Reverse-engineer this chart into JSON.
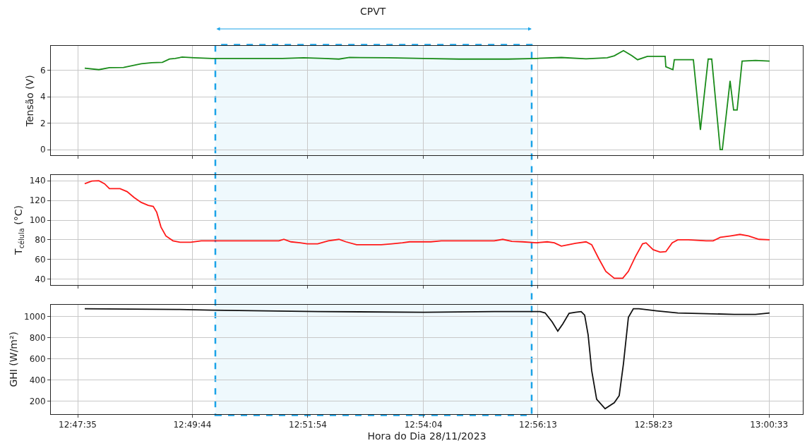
{
  "chart_data": [
    {
      "type": "line",
      "ylabel": "Tensão (V)",
      "xlim": [
        12.78467,
        13.01972
      ],
      "ylim": [
        -0.45,
        7.85
      ],
      "yticks": [
        0,
        2,
        4,
        6
      ],
      "xticks": [
        {
          "value": 12.793056,
          "label": null
        },
        {
          "value": 12.828889,
          "label": null
        },
        {
          "value": 12.865,
          "label": null
        },
        {
          "value": 12.901111,
          "label": null
        },
        {
          "value": 12.936944,
          "label": null
        },
        {
          "value": 12.973056,
          "label": null
        },
        {
          "value": 13.009167,
          "label": null
        }
      ],
      "tick_labels": "y",
      "grid": true,
      "bands": [
        {
          "axis": "x",
          "from": 12.83609,
          "to": 12.93497,
          "label": "CPVT",
          "color": "#1aa3e8"
        }
      ],
      "series": [
        {
          "color": "#1a8c1a",
          "x": [
            12.79526,
            12.79968,
            12.80299,
            12.8074,
            12.81292,
            12.81623,
            12.81954,
            12.82175,
            12.82351,
            12.82572,
            12.82947,
            12.83499,
            12.85706,
            12.86368,
            12.8703,
            12.87472,
            12.87803,
            12.89016,
            12.9012,
            12.91223,
            12.92768,
            12.93651,
            12.94424,
            12.95196,
            12.95858,
            12.96079,
            12.96366,
            12.96631,
            12.96807,
            12.97116,
            12.97668,
            12.9769,
            12.97911,
            12.97955,
            12.98551,
            12.98771,
            12.99014,
            12.99125,
            12.99389,
            12.99456,
            12.99698,
            12.99809,
            12.99919,
            13.00074,
            13.00493,
            13.00934
          ],
          "values": [
            6.16,
            6.05,
            6.2,
            6.22,
            6.5,
            6.58,
            6.6,
            6.85,
            6.9,
            7.0,
            6.95,
            6.9,
            6.9,
            6.95,
            6.9,
            6.85,
            6.97,
            6.95,
            6.9,
            6.85,
            6.85,
            6.9,
            6.97,
            6.87,
            6.95,
            7.1,
            7.49,
            7.1,
            6.8,
            7.06,
            7.06,
            6.27,
            6.05,
            6.8,
            6.8,
            1.49,
            6.85,
            6.85,
            0,
            0,
            5.2,
            3.0,
            3.0,
            6.7,
            6.75,
            6.7
          ]
        }
      ]
    },
    {
      "type": "line",
      "ylabel": "T$_{célula}$ (°C)",
      "xlim": [
        12.78467,
        13.01972
      ],
      "ylim": [
        34.3,
        145.7
      ],
      "yticks": [
        40,
        60,
        80,
        100,
        120,
        140
      ],
      "xticks": [
        {
          "value": 12.793056,
          "label": null
        },
        {
          "value": 12.828889,
          "label": null
        },
        {
          "value": 12.865,
          "label": null
        },
        {
          "value": 12.901111,
          "label": null
        },
        {
          "value": 12.936944,
          "label": null
        },
        {
          "value": 12.973056,
          "label": null
        },
        {
          "value": 13.009167,
          "label": null
        }
      ],
      "tick_labels": "y",
      "grid": true,
      "series": [
        {
          "color": "#ff1a1a",
          "x": [
            12.79526,
            12.79747,
            12.79968,
            12.80144,
            12.80299,
            12.8063,
            12.8085,
            12.81071,
            12.81292,
            12.81513,
            12.81667,
            12.81777,
            12.8191,
            12.82064,
            12.82285,
            12.82506,
            12.82837,
            12.83168,
            12.85596,
            12.8575,
            12.85971,
            12.86258,
            12.86478,
            12.86809,
            12.8714,
            12.87472,
            12.87692,
            12.88023,
            12.88796,
            12.89127,
            12.89458,
            12.89679,
            12.90341,
            12.90672,
            12.92327,
            12.92592,
            12.92879,
            12.9321,
            12.93651,
            12.93982,
            12.94203,
            12.94424,
            12.94644,
            12.94865,
            12.95196,
            12.95373,
            12.95593,
            12.95814,
            12.96079,
            12.96344,
            12.9652,
            12.96741,
            12.96962,
            12.97072,
            12.97293,
            12.97513,
            12.9769,
            12.97889,
            12.98065,
            12.98396,
            12.98948,
            12.99169,
            12.99389,
            12.9972,
            13.00007,
            13.00272,
            13.00603,
            13.00934
          ],
          "values": [
            137,
            139.7,
            140,
            137,
            132,
            132,
            129,
            123,
            118,
            115,
            114,
            108,
            93,
            84,
            79,
            77.5,
            77.5,
            79,
            79,
            80.5,
            78,
            77,
            76,
            76,
            79,
            80.5,
            78,
            75,
            75,
            76,
            77,
            78,
            78,
            79,
            79,
            80.5,
            78.5,
            78,
            77,
            78,
            77,
            73.6,
            75,
            76.5,
            78,
            75,
            61,
            48,
            41,
            41,
            48,
            63,
            76,
            77,
            70,
            67.5,
            68,
            77,
            80,
            80,
            79,
            79,
            82.5,
            84,
            85.5,
            84,
            80.5,
            80
          ]
        }
      ]
    },
    {
      "type": "line",
      "ylabel": "GHI (W/m²)",
      "xlabel": "Hora do Dia 28/11/2023",
      "xlim": [
        12.78467,
        13.01972
      ],
      "ylim": [
        79,
        1114
      ],
      "yticks": [
        200,
        400,
        600,
        800,
        1000
      ],
      "xticks": [
        {
          "value": 12.793056,
          "label": "12:47:35"
        },
        {
          "value": 12.828889,
          "label": "12:49:44"
        },
        {
          "value": 12.865,
          "label": "12:51:54"
        },
        {
          "value": 12.901111,
          "label": "12:54:04"
        },
        {
          "value": 12.936944,
          "label": "12:56:13"
        },
        {
          "value": 12.973056,
          "label": "12:58:23"
        },
        {
          "value": 13.009167,
          "label": "13:00:33"
        }
      ],
      "grid": true,
      "series": [
        {
          "color": "#111111",
          "x": [
            12.79526,
            12.82395,
            12.83499,
            12.86809,
            12.9012,
            12.92327,
            12.93762,
            12.93916,
            12.94137,
            12.94313,
            12.94468,
            12.94666,
            12.94865,
            12.95042,
            12.95152,
            12.95262,
            12.95373,
            12.95527,
            12.95792,
            12.96079,
            12.96233,
            12.96366,
            12.9652,
            12.96675,
            12.96851,
            12.97403,
            12.98065,
            12.98948,
            12.99831,
            13.00493,
            13.00934
          ],
          "values": [
            1074,
            1067,
            1060,
            1047,
            1040,
            1047,
            1047,
            1034,
            950,
            862,
            930,
            1030,
            1040,
            1047,
            1013,
            825,
            489,
            220,
            130,
            187,
            254,
            556,
            993,
            1074,
            1074,
            1054,
            1034,
            1027,
            1020,
            1020,
            1034
          ]
        }
      ]
    }
  ]
}
